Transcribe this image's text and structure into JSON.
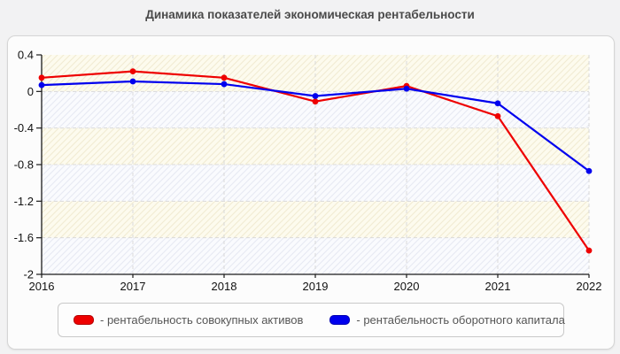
{
  "title": "Динамика показателей экономическая рентабельности",
  "chart_data": {
    "type": "line",
    "title": "Динамика показателей экономическая рентабельности",
    "categories": [
      "2016",
      "2017",
      "2018",
      "2019",
      "2020",
      "2021",
      "2022"
    ],
    "series": [
      {
        "name": "рентабельность совокупных активов",
        "color": "#ee0000",
        "values": [
          0.15,
          0.22,
          0.15,
          -0.11,
          0.06,
          -0.27,
          -1.74
        ]
      },
      {
        "name": "рентабельность оборотного капитала",
        "color": "#0000ee",
        "values": [
          0.07,
          0.11,
          0.08,
          -0.05,
          0.03,
          -0.13,
          -0.87
        ]
      }
    ],
    "ylim": [
      -2,
      0.4
    ],
    "y_ticks": [
      0.4,
      0,
      -0.4,
      -0.8,
      -1.2,
      -1.6,
      -2
    ],
    "y_tick_labels": [
      "0.4",
      "0",
      "-0.4",
      "-0.8",
      "-1.2",
      "-1.6",
      "-2"
    ],
    "grid": "dashed",
    "legend_position": "bottom",
    "colors": {
      "axis": "#1b1b1b",
      "grid": "#d9d9d9",
      "band_warm_bg": "#fdfbee",
      "band_warm_line": "#f1ebd3",
      "band_cool_bg": "#fafbfe",
      "band_cool_line": "#e7e9f3"
    }
  },
  "legend": {
    "items": [
      {
        "label": "- рентабельность совокупных активов",
        "color": "#ee0000"
      },
      {
        "label": "- рентабельность оборотного капитала",
        "color": "#0000ee"
      }
    ]
  }
}
